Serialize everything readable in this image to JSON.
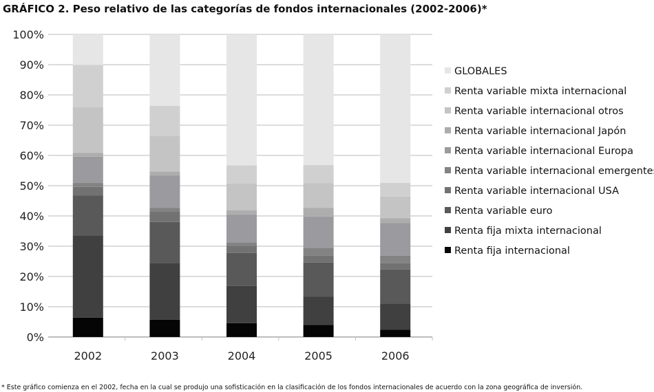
{
  "chart_data": {
    "type": "bar",
    "stacked": true,
    "normalized": true,
    "title": "GRÁFICO 2. Peso relativo de las categorías de fondos internacionales (2002-2006)*",
    "footnote": "* Este gráfico comienza en el 2002, fecha en la cual se produjo una sofisticación en la clasificación de los fondos internacionales de acuerdo con la zona geográfica de inversión.",
    "xlabel": "",
    "ylabel": "",
    "ylim": [
      0,
      100
    ],
    "yticks": [
      "0%",
      "10%",
      "20%",
      "30%",
      "40%",
      "50%",
      "60%",
      "70%",
      "80%",
      "90%",
      "100%"
    ],
    "grid": true,
    "legend_position": "right",
    "categories": [
      "2002",
      "2003",
      "2004",
      "2005",
      "2006"
    ],
    "series": [
      {
        "name": "Renta fija internacional",
        "color": "#050505",
        "values": [
          6.4,
          5.7,
          4.6,
          4.0,
          2.4
        ]
      },
      {
        "name": "Renta fija mixta internacional",
        "color": "#404040",
        "values": [
          27.2,
          18.8,
          12.3,
          9.3,
          8.7
        ]
      },
      {
        "name": "Renta variable euro",
        "color": "#595959",
        "values": [
          13.2,
          13.5,
          10.9,
          11.3,
          11.2
        ]
      },
      {
        "name": "Renta variable internacional USA",
        "color": "#727272",
        "values": [
          2.8,
          3.5,
          2.3,
          2.3,
          2.1
        ]
      },
      {
        "name": "Renta variable internacional emergentes",
        "color": "#838383",
        "values": [
          1.3,
          1.2,
          1.2,
          2.6,
          2.5
        ]
      },
      {
        "name": "Renta variable internacional Europa",
        "color": "#9b9b9f",
        "values": [
          8.7,
          10.6,
          9.2,
          10.3,
          10.8
        ]
      },
      {
        "name": "Renta variable internacional Japón",
        "color": "#adadad",
        "values": [
          1.2,
          1.4,
          1.4,
          2.9,
          1.5
        ]
      },
      {
        "name": "Renta variable internacional otros",
        "color": "#c4c4c4",
        "values": [
          15.2,
          11.8,
          8.8,
          8.1,
          7.2
        ]
      },
      {
        "name": "Renta variable mixta internacional",
        "color": "#d0d0d0",
        "values": [
          13.9,
          9.9,
          6.0,
          6.0,
          4.5
        ]
      },
      {
        "name": "GLOBALES",
        "color": "#e6e6e6",
        "values": [
          10.1,
          23.6,
          43.3,
          43.2,
          49.1
        ]
      }
    ]
  }
}
